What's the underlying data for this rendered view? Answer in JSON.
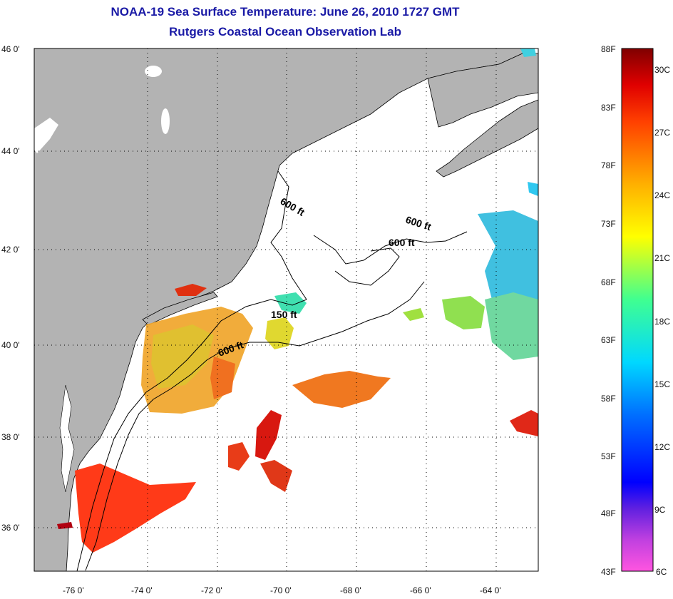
{
  "title": "NOAA-19 Sea Surface Temperature:  June 26, 2010 1727 GMT",
  "subtitle": "Rutgers Coastal Ocean Observation Lab",
  "lat_labels": [
    "46 0'",
    "44 0'",
    "42 0'",
    "40 0'",
    "38 0'",
    "36 0'"
  ],
  "lon_labels": [
    "-76 0'",
    "-74 0'",
    "-72 0'",
    "-70 0'",
    "-68 0'",
    "-66 0'",
    "-64 0'"
  ],
  "contours": [
    "600 ft",
    "600 ft",
    "600 ft",
    "150 ft",
    "600 ft"
  ],
  "colorbar": {
    "f_labels": [
      "88F",
      "83F",
      "78F",
      "73F",
      "68F",
      "63F",
      "58F",
      "53F",
      "48F",
      "43F"
    ],
    "c_labels": [
      "30C",
      "27C",
      "24C",
      "21C",
      "18C",
      "15C",
      "12C",
      "9C",
      "6C"
    ]
  },
  "colors": {
    "land": "#b3b3b3",
    "title": "#1a1aa6"
  }
}
